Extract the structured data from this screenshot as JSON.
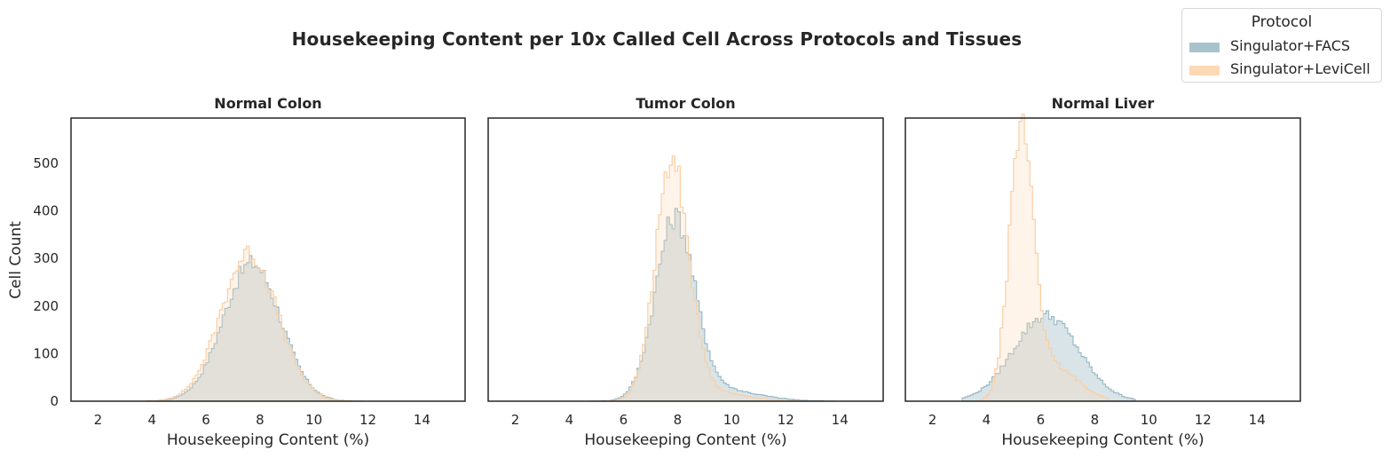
{
  "figure": {
    "title": "Housekeeping Content per 10x Called Cell Across Protocols and Tissues",
    "ylabel": "Cell Count"
  },
  "legend": {
    "title": "Protocol",
    "entries": [
      {
        "label": "Singulator+FACS",
        "color": "#a9c3cc"
      },
      {
        "label": "Singulator+LeviCell",
        "color": "#fdd9b5"
      }
    ]
  },
  "colors": {
    "facs_fill": "#a9c3cc",
    "facs_line": "#9dbac4",
    "levicell_fill": "#fdd9b5",
    "levicell_line": "#f8cfa6",
    "frame": "#262626"
  },
  "chart_data": [
    {
      "type": "histogram",
      "title": "Normal Colon",
      "xlabel": "Housekeeping Content (%)",
      "ylabel": "Cell Count",
      "xlim": [
        1,
        15.6
      ],
      "ylim": [
        0,
        595
      ],
      "xticks": [
        2,
        4,
        6,
        8,
        10,
        12,
        14
      ],
      "yticks": [
        0,
        100,
        200,
        300,
        400,
        500
      ],
      "series": [
        {
          "name": "Singulator+FACS",
          "peaks": [
            {
              "center": 7.7,
              "height": 290,
              "sigma": 1.05
            }
          ],
          "range": [
            3.8,
            11.8
          ]
        },
        {
          "name": "Singulator+LeviCell",
          "peaks": [
            {
              "center": 7.6,
              "height": 310,
              "sigma": 1.05
            }
          ],
          "range": [
            3.8,
            11.5
          ]
        }
      ]
    },
    {
      "type": "histogram",
      "title": "Tumor Colon",
      "xlabel": "Housekeeping Content (%)",
      "xlim": [
        1,
        15.6
      ],
      "ylim": [
        0,
        595
      ],
      "xticks": [
        2,
        4,
        6,
        8,
        10,
        12,
        14
      ],
      "yticks": [],
      "series": [
        {
          "name": "Singulator+FACS",
          "peaks": [
            {
              "center": 7.9,
              "height": 375,
              "sigma": 0.72
            },
            {
              "center": 9.5,
              "height": 25,
              "sigma": 1.4
            }
          ],
          "range": [
            4.7,
            13.8
          ]
        },
        {
          "name": "Singulator+LeviCell",
          "peaks": [
            {
              "center": 7.8,
              "height": 495,
              "sigma": 0.62
            },
            {
              "center": 9.2,
              "height": 20,
              "sigma": 1.2
            }
          ],
          "range": [
            4.8,
            12.8
          ]
        }
      ]
    },
    {
      "type": "histogram",
      "title": "Normal Liver",
      "xlabel": "Housekeeping Content (%)",
      "xlim": [
        1,
        15.6
      ],
      "ylim": [
        0,
        595
      ],
      "xticks": [
        2,
        4,
        6,
        8,
        10,
        12,
        14
      ],
      "yticks": [],
      "series": [
        {
          "name": "Singulator+FACS",
          "peaks": [
            {
              "center": 6.2,
              "height": 180,
              "sigma": 1.2
            }
          ],
          "range": [
            3.1,
            9.5
          ]
        },
        {
          "name": "Singulator+LeviCell",
          "peaks": [
            {
              "center": 5.3,
              "height": 550,
              "sigma": 0.45
            },
            {
              "center": 6.5,
              "height": 70,
              "sigma": 0.9
            }
          ],
          "range": [
            3.6,
            8.5
          ]
        }
      ]
    }
  ]
}
